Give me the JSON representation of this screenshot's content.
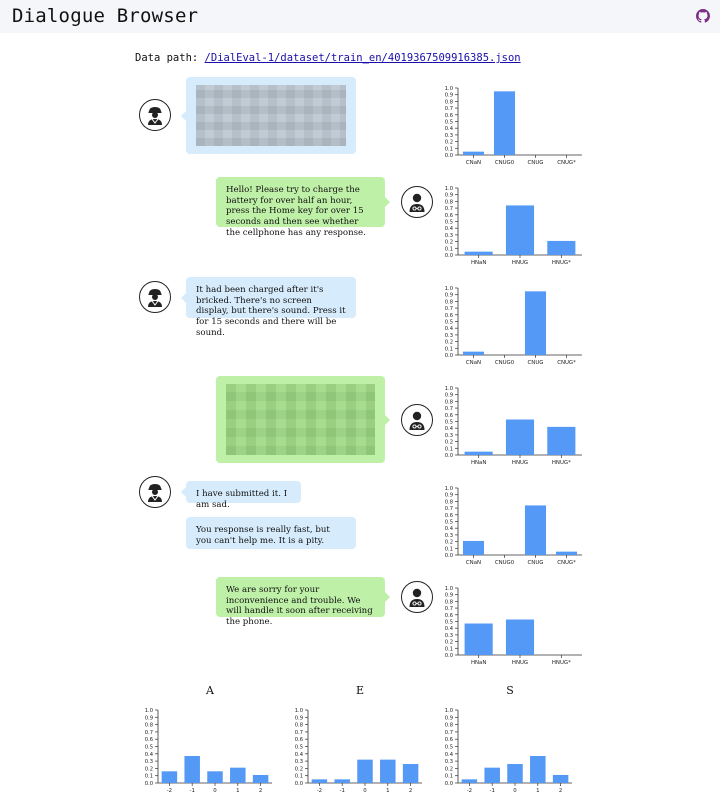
{
  "app": {
    "title": "Dialogue Browser",
    "github_icon": "github-icon"
  },
  "data_path": {
    "label": "Data path:",
    "link": "/DialEval-1/dataset/train_en/4019367509916385.json"
  },
  "colors": {
    "bar": "#5599f7",
    "user_bubble": "#d6ebfb",
    "agent_bubble": "#bff0a8",
    "blur_user": "#b8c3cc",
    "blur_agent": "#9ad77f"
  },
  "turns": [
    {
      "role": "customer",
      "icon": "customer-icon",
      "blurred": true,
      "text": ""
    },
    {
      "role": "helpdesk",
      "icon": "helpdesk-icon",
      "blurred": false,
      "text": "Hello! Please try to charge the battery for over half an hour, press the Home key for over 15 seconds and then see whether the cellphone has any response."
    },
    {
      "role": "customer",
      "icon": "customer-icon",
      "blurred": false,
      "text": "It had been charged after it's bricked. There's no screen display, but there's sound. Press it for 15 seconds and there will be sound."
    },
    {
      "role": "helpdesk",
      "icon": "helpdesk-icon",
      "blurred": true,
      "text": ""
    },
    {
      "role": "customer",
      "icon": "customer-icon",
      "blurred": false,
      "text": "I have submitted it. I am sad."
    },
    {
      "role": "customer",
      "icon": "",
      "blurred": false,
      "text": "You response is really fast, but you can't help me. It is a pity."
    },
    {
      "role": "helpdesk",
      "icon": "helpdesk-icon",
      "blurred": false,
      "text": "We are sorry for your inconvenience and trouble. We will handle it soon after receiving the phone."
    }
  ],
  "chart_data": [
    {
      "type": "bar",
      "title": "",
      "categories": [
        "CNaN",
        "CNUG0",
        "CNUG",
        "CNUG*"
      ],
      "values": [
        0.05,
        0.95,
        0.0,
        0.0
      ],
      "ylim": [
        0,
        1.0
      ],
      "yticks": [
        "0.0",
        "0.1",
        "0.2",
        "0.3",
        "0.4",
        "0.5",
        "0.6",
        "0.7",
        "0.8",
        "0.9",
        "1.0"
      ]
    },
    {
      "type": "bar",
      "title": "",
      "categories": [
        "HNaN",
        "HNUG",
        "HNUG*"
      ],
      "values": [
        0.05,
        0.74,
        0.21
      ],
      "ylim": [
        0,
        1.0
      ],
      "yticks": [
        "0.0",
        "0.1",
        "0.2",
        "0.3",
        "0.4",
        "0.5",
        "0.6",
        "0.7",
        "0.8",
        "0.9",
        "1.0"
      ]
    },
    {
      "type": "bar",
      "title": "",
      "categories": [
        "CNaN",
        "CNUG0",
        "CNUG",
        "CNUG*"
      ],
      "values": [
        0.05,
        0.0,
        0.95,
        0.0
      ],
      "ylim": [
        0,
        1.0
      ],
      "yticks": [
        "0.0",
        "0.1",
        "0.2",
        "0.3",
        "0.4",
        "0.5",
        "0.6",
        "0.7",
        "0.8",
        "0.9",
        "1.0"
      ]
    },
    {
      "type": "bar",
      "title": "",
      "categories": [
        "HNaN",
        "HNUG",
        "HNUG*"
      ],
      "values": [
        0.05,
        0.53,
        0.42
      ],
      "ylim": [
        0,
        1.0
      ],
      "yticks": [
        "0.0",
        "0.1",
        "0.2",
        "0.3",
        "0.4",
        "0.5",
        "0.6",
        "0.7",
        "0.8",
        "0.9",
        "1.0"
      ]
    },
    {
      "type": "bar",
      "title": "",
      "categories": [
        "CNaN",
        "CNUG0",
        "CNUG",
        "CNUG*"
      ],
      "values": [
        0.21,
        0.0,
        0.74,
        0.05
      ],
      "ylim": [
        0,
        1.0
      ],
      "yticks": [
        "0.0",
        "0.1",
        "0.2",
        "0.3",
        "0.4",
        "0.5",
        "0.6",
        "0.7",
        "0.8",
        "0.9",
        "1.0"
      ]
    },
    {
      "type": "bar",
      "title": "",
      "categories": [
        "HNaN",
        "HNUG",
        "HNUG*"
      ],
      "values": [
        0.47,
        0.53,
        0.0
      ],
      "ylim": [
        0,
        1.0
      ],
      "yticks": [
        "0.0",
        "0.1",
        "0.2",
        "0.3",
        "0.4",
        "0.5",
        "0.6",
        "0.7",
        "0.8",
        "0.9",
        "1.0"
      ]
    },
    {
      "type": "bar",
      "title": "A",
      "categories": [
        "-2",
        "-1",
        "0",
        "1",
        "2"
      ],
      "values": [
        0.16,
        0.37,
        0.16,
        0.21,
        0.11
      ],
      "ylim": [
        0,
        1.0
      ],
      "yticks": [
        "0.0",
        "0.1",
        "0.2",
        "0.3",
        "0.4",
        "0.5",
        "0.6",
        "0.7",
        "0.8",
        "0.9",
        "1.0"
      ]
    },
    {
      "type": "bar",
      "title": "E",
      "categories": [
        "-2",
        "-1",
        "0",
        "1",
        "2"
      ],
      "values": [
        0.05,
        0.05,
        0.32,
        0.32,
        0.26
      ],
      "ylim": [
        0,
        1.0
      ],
      "yticks": [
        "0.0",
        "0.1",
        "0.2",
        "0.3",
        "0.4",
        "0.5",
        "0.6",
        "0.7",
        "0.8",
        "0.9",
        "1.0"
      ]
    },
    {
      "type": "bar",
      "title": "S",
      "categories": [
        "-2",
        "-1",
        "0",
        "1",
        "2"
      ],
      "values": [
        0.05,
        0.21,
        0.26,
        0.37,
        0.11
      ],
      "ylim": [
        0,
        1.0
      ],
      "yticks": [
        "0.0",
        "0.1",
        "0.2",
        "0.3",
        "0.4",
        "0.5",
        "0.6",
        "0.7",
        "0.8",
        "0.9",
        "1.0"
      ]
    }
  ]
}
